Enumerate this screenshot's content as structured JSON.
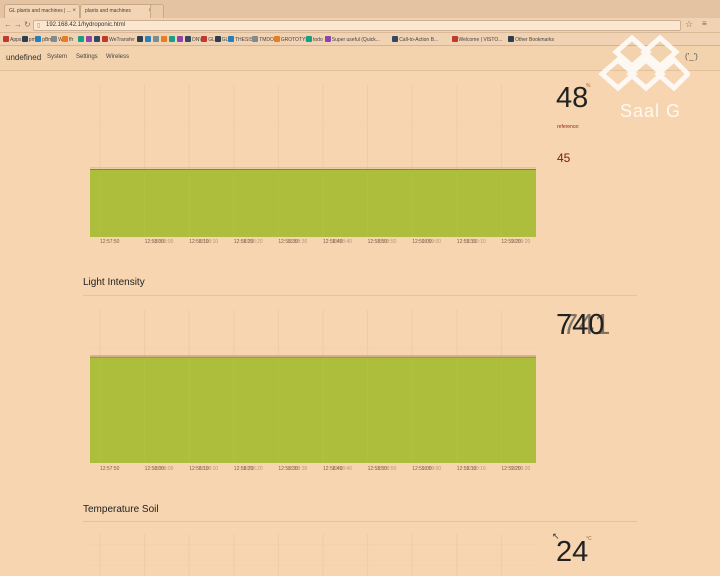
{
  "browser": {
    "tabs": [
      {
        "label": "GL plants and machines | ..."
      },
      {
        "label": "plants and machines"
      }
    ],
    "url": "192.168.42.1/hydroponic.html",
    "bookmarks": [
      "Apps",
      "pm",
      "pBm",
      "W",
      "ffr",
      "",
      "",
      "",
      "WeTransfer",
      "",
      "",
      "",
      "",
      "",
      "",
      "DNV",
      "GL",
      "GL",
      "THESIS",
      "TMDOT",
      "GROTOTYPE",
      "todo",
      "Super useful (Quick...",
      "Call-to-Action B...",
      "Welcome | VISTO...",
      "Other Bookmarks"
    ]
  },
  "app": {
    "brand": "undefined",
    "nav": [
      "System",
      "Settings",
      "Wireless"
    ],
    "nav_right": "('_')"
  },
  "watermark": {
    "text": "Saal G"
  },
  "panels": [
    {
      "id": "humidity",
      "title": "",
      "reading": "48",
      "unit": "%",
      "reference_label": "reference:",
      "reference_value": "45",
      "time_labels": [
        "12:57:50",
        "12:58:00",
        "12:58:10",
        "12:58:20",
        "12:58:30",
        "12:58:40",
        "12:58:50",
        "12:59:00",
        "12:59:10",
        "12:59:20"
      ],
      "ghost_labels": [
        "12:58:00",
        "12:58:10",
        "12:58:20",
        "12:58:30",
        "12:58:40",
        "12:58:50",
        "12:59:00",
        "12:59:10",
        "12:59:20"
      ]
    },
    {
      "id": "light",
      "title": "Light Intensity",
      "reading": "740",
      "ghost_reading": "741",
      "unit": "",
      "time_labels": [
        "12:57:50",
        "12:58:00",
        "12:58:10",
        "12:58:20",
        "12:58:30",
        "12:58:40",
        "12:58:50",
        "12:59:00",
        "12:59:10",
        "12:59:20"
      ],
      "ghost_labels": [
        "12:58:00",
        "12:58:10",
        "12:58:20",
        "12:58:30",
        "12:58:40",
        "12:58:50",
        "12:59:00",
        "12:59:10",
        "12:59:20"
      ]
    },
    {
      "id": "soil",
      "title": "Temperature Soil",
      "reading": "24",
      "unit": "°C"
    }
  ],
  "colors": {
    "page_bg": "#f7d5b0",
    "area_fill": "#a9bc36",
    "area_line": "#8c6b3a",
    "ghost_line": "#c9a268",
    "reference_red": "#7a1c0c"
  },
  "chart_data": [
    {
      "type": "area",
      "title": "",
      "x": [
        "12:57:50",
        "12:58:00",
        "12:58:10",
        "12:58:20",
        "12:58:30",
        "12:58:40",
        "12:58:50",
        "12:59:00",
        "12:59:10",
        "12:59:20"
      ],
      "series": [
        {
          "values": [
            48,
            48,
            48,
            48.5,
            48,
            48,
            48,
            48,
            48,
            48.5
          ]
        }
      ],
      "xlabel": "",
      "ylabel": "",
      "ylim": [
        0,
        60
      ],
      "grid": true
    },
    {
      "type": "area",
      "title": "Light Intensity",
      "x": [
        "12:57:50",
        "12:58:00",
        "12:58:10",
        "12:58:20",
        "12:58:30",
        "12:58:40",
        "12:58:50",
        "12:59:00",
        "12:59:10",
        "12:59:20"
      ],
      "series": [
        {
          "values": [
            740,
            741,
            740,
            740,
            741,
            740,
            740,
            741,
            742,
            740
          ]
        }
      ],
      "xlabel": "",
      "ylabel": "",
      "ylim": [
        0,
        900
      ],
      "grid": true
    }
  ]
}
